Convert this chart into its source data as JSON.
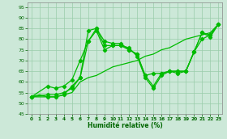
{
  "xlabel": "Humidité relative (%)",
  "background_color": "#cce8d8",
  "grid_color": "#99ccaa",
  "line_color": "#00bb00",
  "xlim": [
    -0.5,
    23.5
  ],
  "ylim": [
    45,
    97
  ],
  "yticks": [
    45,
    50,
    55,
    60,
    65,
    70,
    75,
    80,
    85,
    90,
    95
  ],
  "xticks": [
    0,
    1,
    2,
    3,
    4,
    5,
    6,
    7,
    8,
    9,
    10,
    11,
    12,
    13,
    14,
    15,
    16,
    17,
    18,
    19,
    20,
    21,
    22,
    23
  ],
  "line1_x": [
    0,
    1,
    2,
    3,
    4,
    5,
    6,
    7,
    8,
    9,
    10,
    11,
    12,
    13,
    14,
    15,
    16,
    17,
    18,
    19,
    20,
    21,
    22,
    23
  ],
  "line1_y": [
    53,
    54,
    53,
    53,
    54,
    55,
    60,
    62,
    63,
    65,
    67,
    68,
    69,
    70,
    72,
    73,
    75,
    76,
    78,
    80,
    81,
    82,
    83,
    87
  ],
  "line2_x": [
    0,
    2,
    3,
    4,
    5,
    6,
    7,
    8,
    9,
    10,
    11,
    12,
    13,
    14,
    15,
    16,
    17,
    18,
    19,
    20,
    21,
    22,
    23
  ],
  "line2_y": [
    53,
    53,
    53,
    54,
    58,
    62,
    79,
    84,
    75,
    77,
    77,
    76,
    72,
    62,
    57,
    63,
    65,
    65,
    65,
    74,
    80,
    82,
    87
  ],
  "line3_x": [
    0,
    2,
    3,
    4,
    5,
    6,
    7,
    8,
    9,
    10,
    11,
    12,
    13,
    14,
    15,
    16,
    17,
    18,
    19,
    20,
    21,
    22,
    23
  ],
  "line3_y": [
    53,
    58,
    57,
    58,
    61,
    70,
    79,
    85,
    77,
    77,
    77,
    75,
    73,
    63,
    64,
    64,
    65,
    64,
    65,
    74,
    83,
    82,
    87
  ],
  "line4_x": [
    0,
    2,
    3,
    4,
    5,
    6,
    7,
    8,
    9,
    10,
    11,
    12,
    13,
    14,
    15,
    16,
    17,
    18,
    19,
    20,
    21,
    22,
    23
  ],
  "line4_y": [
    53,
    54,
    54,
    55,
    57,
    62,
    84,
    85,
    79,
    78,
    78,
    75,
    73,
    63,
    58,
    64,
    65,
    65,
    65,
    74,
    83,
    81,
    87
  ]
}
